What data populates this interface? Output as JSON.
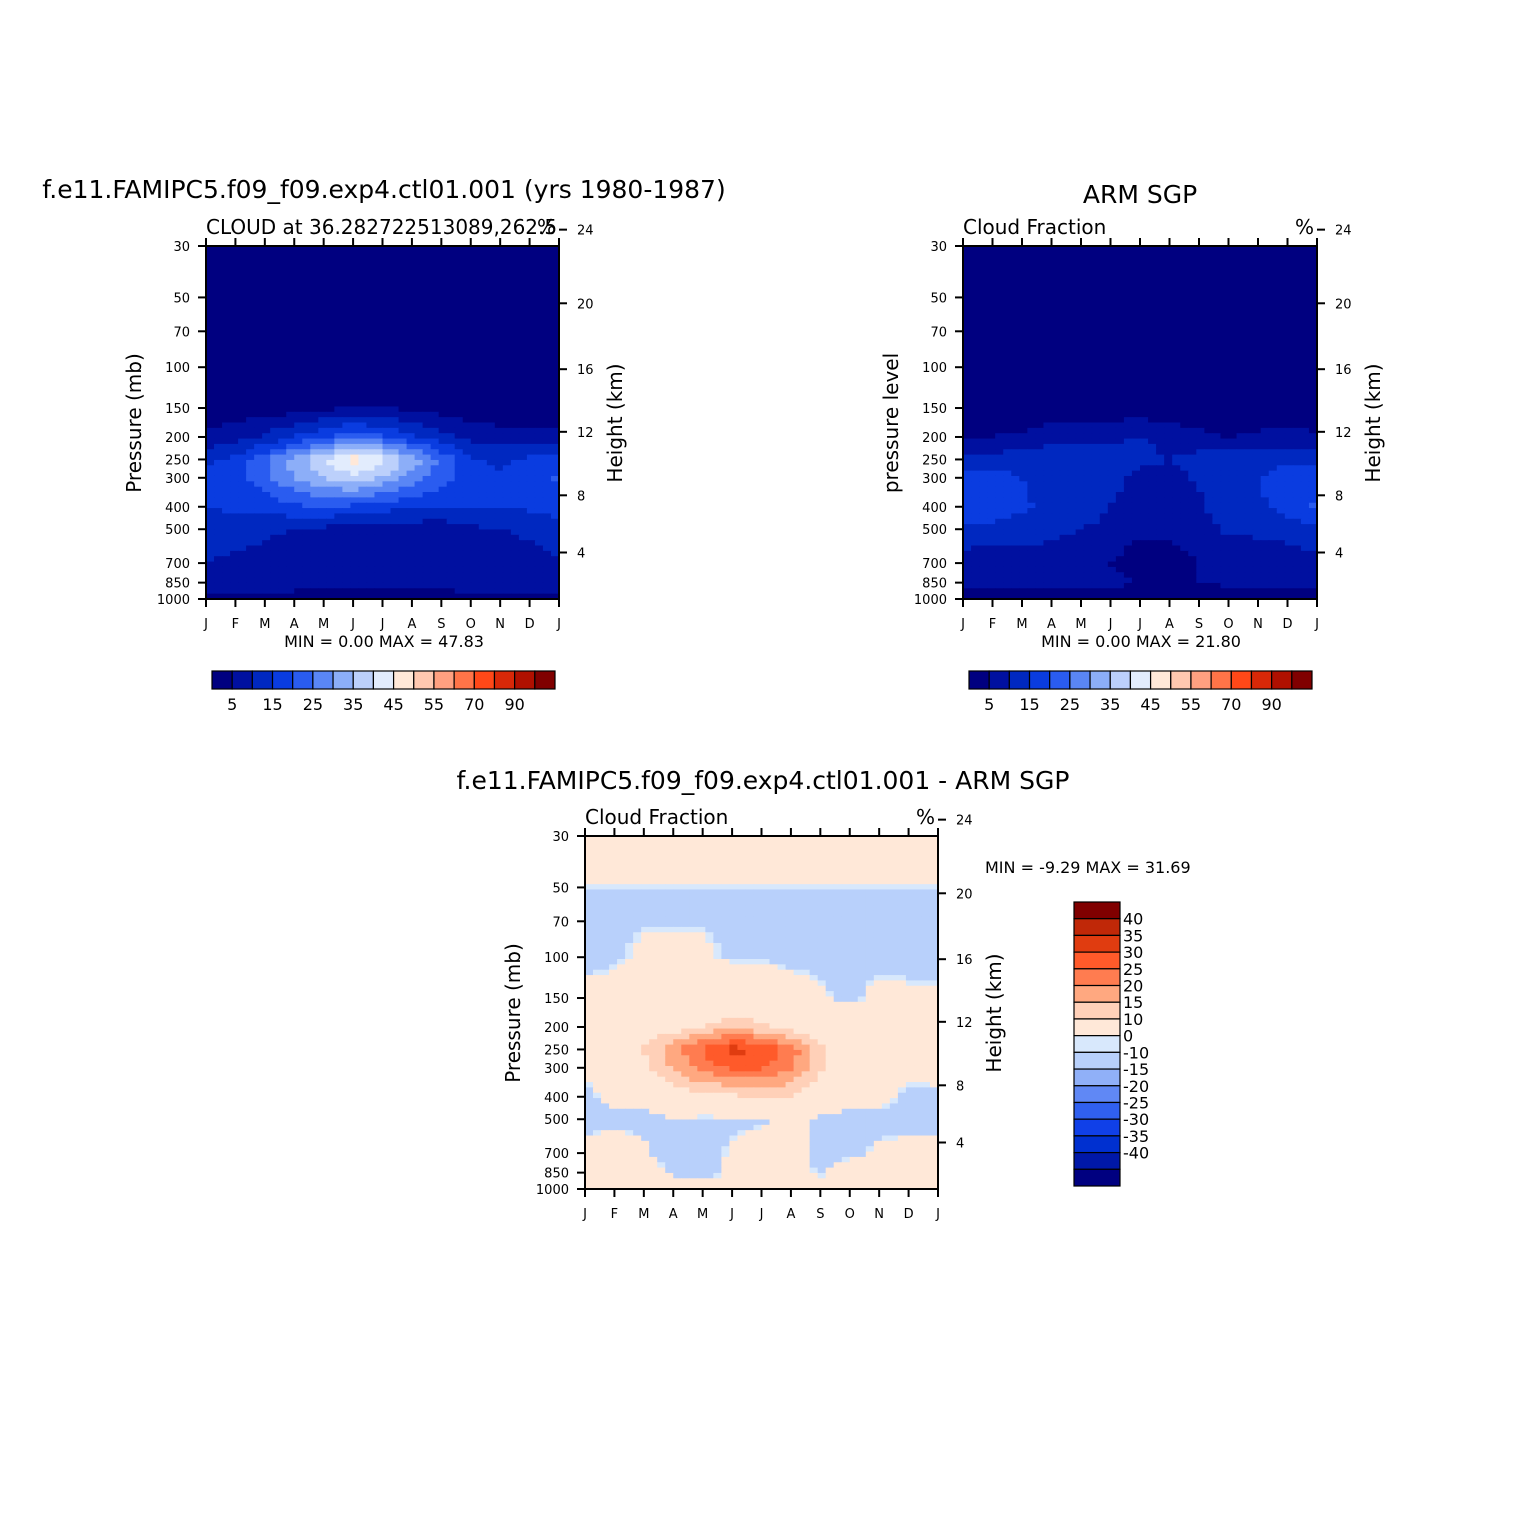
{
  "palette": {
    "abs": [
      "#000080",
      "#0010a0",
      "#0028c0",
      "#0a3ce0",
      "#2a5cf0",
      "#5a86f5",
      "#8caef8",
      "#bcd0fb",
      "#e2ecfd",
      "#ffe8d8",
      "#ffc8b0",
      "#ffa080",
      "#ff7448",
      "#ff4818",
      "#d82808",
      "#b01000",
      "#800000"
    ],
    "diff": [
      "#000080",
      "#0018a8",
      "#0030d0",
      "#1040e8",
      "#3060f0",
      "#6088f5",
      "#90b0f8",
      "#b8d0fb",
      "#d8e8fc",
      "#ffe8d8",
      "#ffd0b8",
      "#ffa880",
      "#ff7c50",
      "#ff5a2a",
      "#e03c10",
      "#c02808",
      "#800000"
    ]
  },
  "chart_data": [
    {
      "id": "model",
      "type": "heatmap",
      "title": "f.e11.FAMIPC5.f09_f09.exp4.ctl01.001 (yrs 1980-1987)",
      "left_title": "CLOUD at 36.282722513089,262.5",
      "right_title": "%",
      "ylabel": "Pressure (mb)",
      "ylabel_right": "Height (km)",
      "x_ticks": [
        "J",
        "F",
        "M",
        "A",
        "M",
        "J",
        "J",
        "A",
        "S",
        "O",
        "N",
        "D",
        "J"
      ],
      "y_ticks": [
        "30",
        "50",
        "70",
        "100",
        "150",
        "200",
        "250",
        "300",
        "400",
        "500",
        "700",
        "850",
        "1000"
      ],
      "y_right_ticks": [
        "24",
        "20",
        "16",
        "12",
        "8",
        "4"
      ],
      "min_max": "MIN =    0.00  MAX =   47.83",
      "colorbar_labels": [
        "5",
        "15",
        "25",
        "35",
        "45",
        "55",
        "70",
        "90"
      ],
      "levels": [
        0,
        5,
        10,
        15,
        20,
        25,
        30,
        35,
        40,
        45,
        50,
        55,
        60,
        70,
        80,
        90,
        100
      ],
      "field": [
        {
          "p": 30,
          "v": [
            0,
            0,
            0,
            0,
            0,
            0,
            0,
            0,
            0,
            0,
            0,
            0,
            0
          ]
        },
        {
          "p": 100,
          "v": [
            1,
            1,
            1,
            1,
            1,
            1,
            1,
            1,
            1,
            1,
            1,
            1,
            1
          ]
        },
        {
          "p": 150,
          "v": [
            2,
            2,
            2,
            3,
            4,
            5,
            5,
            4,
            3,
            2,
            2,
            2,
            2
          ]
        },
        {
          "p": 200,
          "v": [
            6,
            8,
            11,
            15,
            19,
            23,
            21,
            16,
            12,
            8,
            7,
            7,
            6
          ]
        },
        {
          "p": 250,
          "v": [
            14,
            16,
            24,
            32,
            40,
            48,
            42,
            33,
            24,
            16,
            14,
            16,
            18
          ]
        },
        {
          "p": 300,
          "v": [
            16,
            18,
            23,
            30,
            35,
            38,
            34,
            28,
            22,
            17,
            16,
            18,
            21
          ]
        },
        {
          "p": 400,
          "v": [
            15,
            16,
            17,
            19,
            20,
            19,
            17,
            16,
            15,
            15,
            15,
            16,
            18
          ]
        },
        {
          "p": 500,
          "v": [
            12,
            12,
            11,
            10,
            9,
            8,
            7,
            7,
            7,
            9,
            10,
            11,
            12
          ]
        },
        {
          "p": 700,
          "v": [
            10,
            9,
            8,
            6,
            5,
            5,
            5,
            5,
            5,
            6,
            7,
            8,
            10
          ]
        },
        {
          "p": 850,
          "v": [
            9,
            10,
            8,
            7,
            6,
            6,
            6,
            6,
            6,
            8,
            8,
            8,
            9
          ]
        },
        {
          "p": 1000,
          "v": [
            3,
            3,
            3,
            3,
            3,
            3,
            3,
            3,
            3,
            3,
            3,
            3,
            3
          ]
        }
      ]
    },
    {
      "id": "obs",
      "type": "heatmap",
      "title": "ARM SGP",
      "left_title": "Cloud Fraction",
      "right_title": "%",
      "ylabel": "pressure level",
      "ylabel_right": "Height (km)",
      "x_ticks": [
        "J",
        "F",
        "M",
        "A",
        "M",
        "J",
        "J",
        "A",
        "S",
        "O",
        "N",
        "D",
        "J"
      ],
      "y_ticks": [
        "30",
        "50",
        "70",
        "100",
        "150",
        "200",
        "250",
        "300",
        "400",
        "500",
        "700",
        "850",
        "1000"
      ],
      "y_right_ticks": [
        "24",
        "20",
        "16",
        "12",
        "8",
        "4"
      ],
      "min_max": "MIN =    0.00  MAX =   21.80",
      "colorbar_labels": [
        "5",
        "15",
        "25",
        "35",
        "45",
        "55",
        "70",
        "90"
      ],
      "levels": [
        0,
        5,
        10,
        15,
        20,
        25,
        30,
        35,
        40,
        45,
        50,
        55,
        60,
        70,
        80,
        90,
        100
      ],
      "field": [
        {
          "p": 30,
          "v": [
            0,
            0,
            0,
            0,
            0,
            0,
            0,
            0,
            0,
            0,
            0,
            0,
            0
          ]
        },
        {
          "p": 100,
          "v": [
            0,
            0,
            0,
            0,
            0,
            0,
            0,
            0,
            0,
            0,
            0,
            0,
            0
          ]
        },
        {
          "p": 150,
          "v": [
            1,
            1,
            1,
            2,
            2,
            2,
            2,
            2,
            2,
            1,
            1,
            1,
            1
          ]
        },
        {
          "p": 200,
          "v": [
            4,
            5,
            6,
            8,
            9,
            9,
            10,
            8,
            6,
            5,
            6,
            7,
            6
          ]
        },
        {
          "p": 250,
          "v": [
            12,
            12,
            13,
            14,
            14,
            13,
            12,
            10,
            12,
            13,
            13,
            14,
            14
          ]
        },
        {
          "p": 300,
          "v": [
            16,
            17,
            15,
            14,
            13,
            12,
            8,
            7,
            11,
            14,
            15,
            17,
            18
          ]
        },
        {
          "p": 400,
          "v": [
            18,
            20,
            16,
            13,
            12,
            10,
            7,
            6,
            9,
            13,
            14,
            17,
            21
          ]
        },
        {
          "p": 500,
          "v": [
            14,
            13,
            12,
            11,
            10,
            9,
            6,
            6,
            8,
            11,
            11,
            12,
            14
          ]
        },
        {
          "p": 700,
          "v": [
            7,
            7,
            8,
            8,
            7,
            5,
            2,
            3,
            5,
            6,
            7,
            7,
            8
          ]
        },
        {
          "p": 850,
          "v": [
            6,
            8,
            6,
            6,
            6,
            6,
            5,
            5,
            5,
            6,
            8,
            7,
            7
          ]
        },
        {
          "p": 1000,
          "v": [
            2,
            2,
            2,
            2,
            2,
            2,
            2,
            2,
            2,
            2,
            2,
            2,
            2
          ]
        }
      ]
    },
    {
      "id": "diff",
      "type": "heatmap",
      "title": "f.e11.FAMIPC5.f09_f09.exp4.ctl01.001 - ARM SGP",
      "left_title": "Cloud Fraction",
      "right_title": "%",
      "ylabel": "Pressure (mb)",
      "ylabel_right": "Height (km)",
      "x_ticks": [
        "J",
        "F",
        "M",
        "A",
        "M",
        "J",
        "J",
        "A",
        "S",
        "O",
        "N",
        "D",
        "J"
      ],
      "y_ticks": [
        "30",
        "50",
        "70",
        "100",
        "150",
        "200",
        "250",
        "300",
        "400",
        "500",
        "700",
        "850",
        "1000"
      ],
      "y_right_ticks": [
        "24",
        "20",
        "16",
        "12",
        "8",
        "4"
      ],
      "min_max": "MIN =   -9.29  MAX =   31.69",
      "colorbar_labels": [
        "40",
        "35",
        "30",
        "25",
        "20",
        "15",
        "10",
        "0",
        "-10",
        "-15",
        "-20",
        "-25",
        "-30",
        "-35",
        "-40"
      ],
      "levels": [
        -100,
        -40,
        -35,
        -30,
        -25,
        -20,
        -15,
        -10,
        -0.2,
        0,
        10,
        15,
        20,
        25,
        30,
        35,
        40,
        100
      ],
      "field": [
        {
          "p": 30,
          "v": [
            0.5,
            0.5,
            0.5,
            0.5,
            0.5,
            0.5,
            0.5,
            0.5,
            0.5,
            0.5,
            0.5,
            0.5,
            0.5
          ]
        },
        {
          "p": 49,
          "v": [
            0.5,
            0.5,
            0.5,
            0.5,
            0.5,
            0.5,
            0.5,
            0.5,
            0.5,
            0.5,
            0.5,
            0.5,
            0.5
          ]
        },
        {
          "p": 51,
          "v": [
            -1,
            -1,
            -1,
            -1,
            -1,
            -1,
            -1,
            -1,
            -1,
            -1,
            -1,
            -1,
            -1
          ]
        },
        {
          "p": 100,
          "v": [
            -1,
            -0.5,
            0.5,
            0.5,
            0.5,
            -0.5,
            -0.5,
            -1,
            -1,
            -1,
            -1,
            -1,
            -1
          ]
        },
        {
          "p": 150,
          "v": [
            1,
            1,
            1,
            1,
            2,
            3,
            3,
            2,
            0.5,
            -1,
            1,
            0.5,
            0.5
          ]
        },
        {
          "p": 200,
          "v": [
            2,
            3,
            5,
            7,
            10,
            14,
            11,
            8,
            6,
            3,
            1,
            0.5,
            0.5
          ]
        },
        {
          "p": 250,
          "v": [
            2,
            4,
            11,
            18,
            26,
            32,
            30,
            23,
            12,
            3,
            1,
            2,
            4
          ]
        },
        {
          "p": 300,
          "v": [
            0.5,
            1,
            8,
            16,
            22,
            26,
            26,
            21,
            11,
            3,
            1,
            1,
            3
          ]
        },
        {
          "p": 400,
          "v": [
            -1,
            1,
            1,
            6,
            8,
            9,
            10,
            10,
            6,
            2,
            1,
            -1,
            -2
          ]
        },
        {
          "p": 500,
          "v": [
            -2,
            -1,
            -1,
            -0.5,
            -1,
            -1,
            -1,
            1,
            -1,
            -2,
            -1,
            -1,
            -2
          ]
        },
        {
          "p": 700,
          "v": [
            2,
            2,
            0.5,
            -2,
            -2,
            0.5,
            3,
            2,
            -1,
            -1,
            0.5,
            1,
            2
          ]
        },
        {
          "p": 850,
          "v": [
            3,
            2,
            2,
            -0.5,
            -1,
            0.5,
            1,
            1,
            -0.5,
            2,
            0.5,
            1,
            2
          ]
        },
        {
          "p": 1000,
          "v": [
            1,
            1,
            1,
            1,
            1,
            1,
            1,
            1,
            1,
            1,
            1,
            1,
            1
          ]
        }
      ]
    }
  ]
}
